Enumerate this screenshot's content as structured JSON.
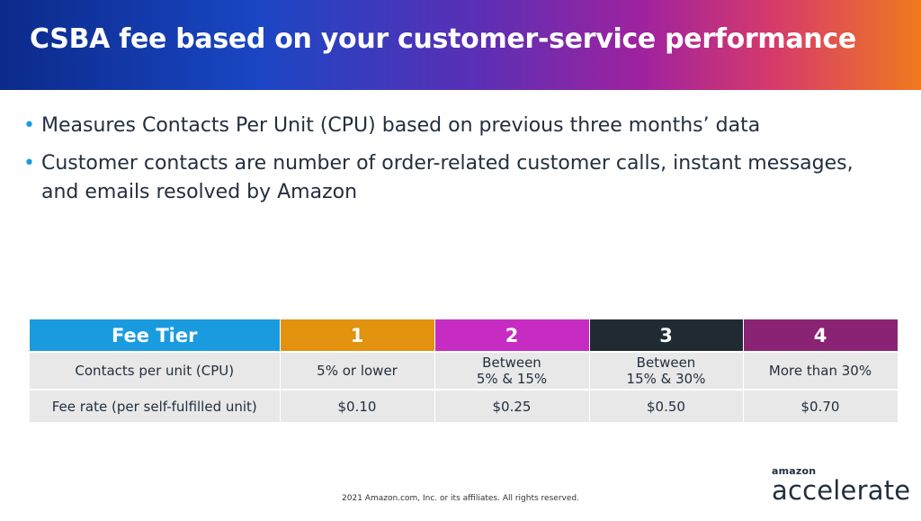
{
  "header": {
    "title": "CSBA fee based on your customer-service performance"
  },
  "bullets": [
    "Measures Contacts Per Unit (CPU) based on previous three months’ data",
    "Customer contacts are number of order-related customer calls, instant messages, and emails resolved by Amazon"
  ],
  "table": {
    "columns": [
      {
        "label": "Fee Tier",
        "color": "#1a9be0"
      },
      {
        "label": "1",
        "color": "#e2920f"
      },
      {
        "label": "2",
        "color": "#c72cc2"
      },
      {
        "label": "3",
        "color": "#1f2a33"
      },
      {
        "label": "4",
        "color": "#8a2374"
      }
    ],
    "rows": [
      {
        "label": "Contacts per unit (CPU)",
        "cells": [
          "5% or lower",
          "Between\n5% & 15%",
          "Between\n15% & 30%",
          "More than 30%"
        ]
      },
      {
        "label": "Fee rate (per self-fulfilled unit)",
        "cells": [
          "$0.10",
          "$0.25",
          "$0.50",
          "$0.70"
        ]
      }
    ]
  },
  "footer": {
    "copyright": "2021 Amazon.com, Inc. or its affiliates. All rights reserved."
  },
  "logo": {
    "small": "amazon",
    "big": "accelerate"
  }
}
